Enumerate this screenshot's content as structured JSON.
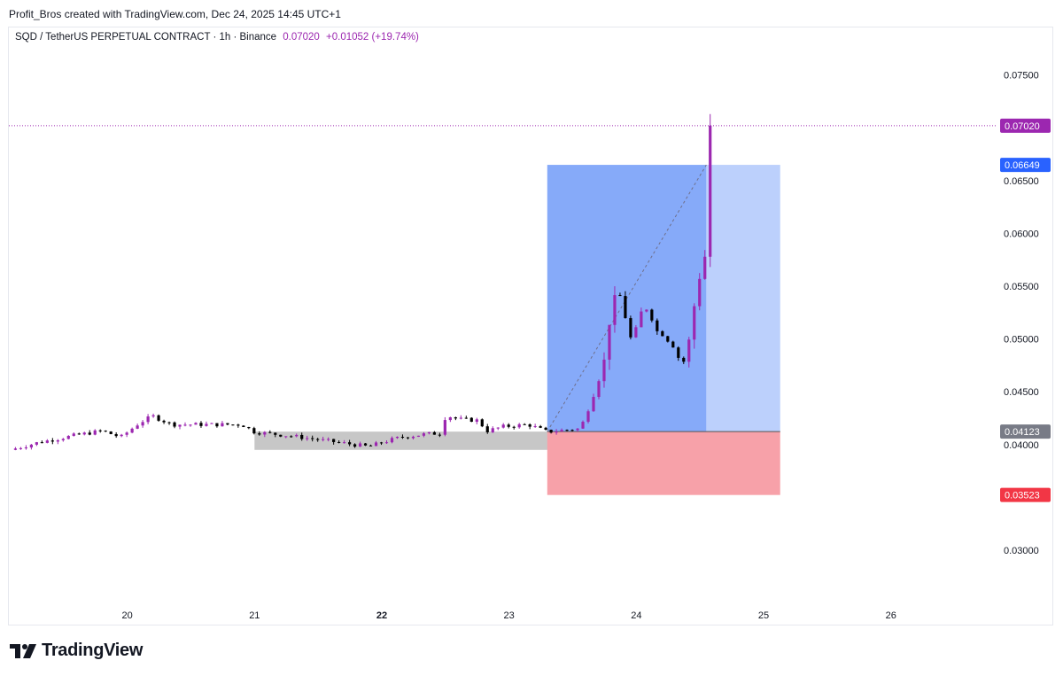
{
  "attribution": "Profit_Bros created with TradingView.com, Dec 24, 2025 14:45 UTC+1",
  "header": {
    "symbol": "SQD / TetherUS PERPETUAL CONTRACT · 1h · Binance",
    "price": "0.07020",
    "change": "+0.01052 (+19.74%)"
  },
  "footer": {
    "brand": "TradingView"
  },
  "colors": {
    "bull": "#9c27b0",
    "bear": "#000000",
    "profit_zone": "#86aaf9",
    "profit_zone_light": "#bcd0fc",
    "loss_zone": "#f7a1a9",
    "consolidation": "#c4c4c4",
    "last_price": "#9c27b0",
    "target": "#2962ff",
    "entry": "#787b86",
    "stop": "#f23645"
  },
  "chart_data": {
    "type": "candlestick",
    "timeframe": "1h",
    "x_ticks": [
      {
        "label": "20",
        "day": 20,
        "bold": false
      },
      {
        "label": "21",
        "day": 21,
        "bold": false
      },
      {
        "label": "22",
        "day": 22,
        "bold": true
      },
      {
        "label": "23",
        "day": 23,
        "bold": false
      },
      {
        "label": "24",
        "day": 24,
        "bold": false
      },
      {
        "label": "25",
        "day": 25,
        "bold": false
      },
      {
        "label": "26",
        "day": 26,
        "bold": false
      }
    ],
    "y_ticks": [
      "0.07500",
      "0.06500",
      "0.06000",
      "0.05500",
      "0.05000",
      "0.04500",
      "0.04000",
      "0.03000"
    ],
    "ylim": [
      0.0248,
      0.0795
    ],
    "xlim_days": [
      19.07,
      26.83
    ],
    "price_tags": [
      {
        "label": "0.07020",
        "value": 0.0702,
        "role": "last_price"
      },
      {
        "label": "0.06649",
        "value": 0.06649,
        "role": "target"
      },
      {
        "label": "0.04123",
        "value": 0.04123,
        "role": "entry"
      },
      {
        "label": "0.03523",
        "value": 0.03523,
        "role": "stop"
      }
    ],
    "position": {
      "type": "long",
      "entry": 0.04123,
      "target": 0.06649,
      "stop": 0.03523,
      "start_day": 23.3,
      "fill_end_day": 24.55,
      "end_day": 25.13
    },
    "consolidation_zone": {
      "start_day": 21.0,
      "end_day": 23.8,
      "top": 0.04123,
      "bottom": 0.0395
    },
    "anchor_points": [
      [
        19.08,
        0.0395
      ],
      [
        19.3,
        0.0402
      ],
      [
        19.6,
        0.0409
      ],
      [
        19.8,
        0.0413
      ],
      [
        19.95,
        0.0407
      ],
      [
        20.1,
        0.0421
      ],
      [
        20.2,
        0.0427
      ],
      [
        20.35,
        0.0419
      ],
      [
        20.6,
        0.0419
      ],
      [
        20.9,
        0.0419
      ],
      [
        21.0,
        0.0412
      ],
      [
        21.3,
        0.0408
      ],
      [
        21.6,
        0.0403
      ],
      [
        21.9,
        0.0398
      ],
      [
        22.0,
        0.0402
      ],
      [
        22.15,
        0.0407
      ],
      [
        22.35,
        0.041
      ],
      [
        22.48,
        0.0411
      ],
      [
        22.5,
        0.0428
      ],
      [
        22.6,
        0.0424
      ],
      [
        22.75,
        0.0423
      ],
      [
        22.83,
        0.0413
      ],
      [
        22.95,
        0.0417
      ],
      [
        23.15,
        0.0419
      ],
      [
        23.3,
        0.0412
      ],
      [
        23.45,
        0.0414
      ],
      [
        23.55,
        0.0415
      ],
      [
        23.58,
        0.0421
      ],
      [
        23.62,
        0.0433
      ],
      [
        23.66,
        0.0446
      ],
      [
        23.7,
        0.046
      ],
      [
        23.74,
        0.0474
      ],
      [
        23.77,
        0.05
      ],
      [
        23.8,
        0.0524
      ],
      [
        23.85,
        0.055
      ],
      [
        23.9,
        0.0528
      ],
      [
        23.95,
        0.05
      ],
      [
        24.0,
        0.051
      ],
      [
        24.05,
        0.053
      ],
      [
        24.1,
        0.0528
      ],
      [
        24.15,
        0.0508
      ],
      [
        24.2,
        0.0505
      ],
      [
        24.3,
        0.0492
      ],
      [
        24.36,
        0.0473
      ],
      [
        24.42,
        0.0502
      ],
      [
        24.45,
        0.0528
      ],
      [
        24.5,
        0.056
      ],
      [
        24.52,
        0.0575
      ],
      [
        24.55,
        0.058
      ],
      [
        24.57,
        0.063
      ],
      [
        24.6,
        0.0702
      ]
    ]
  }
}
